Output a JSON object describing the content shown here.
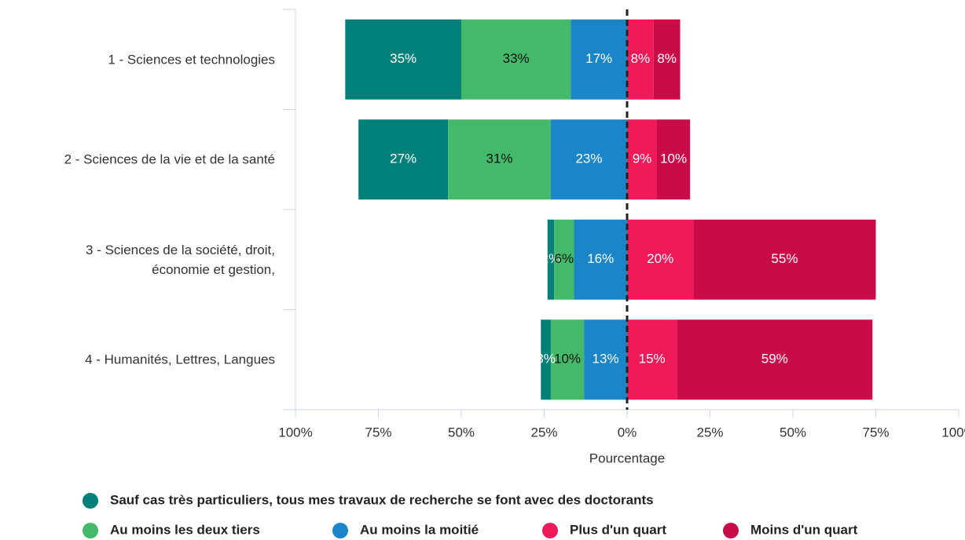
{
  "chart_data": {
    "type": "diverging_bar",
    "categories": [
      "1 - Sciences et technologies",
      "2 - Sciences de la vie et de la santé",
      "3 - Sciences de la société, droit,\néconomie et gestion,",
      "4 - Humanités, Lettres, Langues"
    ],
    "series": [
      {
        "name": "Sauf cas très particuliers, tous mes travaux de recherche se font avec des doctorants",
        "color": "#008078",
        "label_color": "#ffffff",
        "side": "left",
        "values": [
          35,
          27,
          2,
          3
        ],
        "value_labels": [
          "35%",
          "27%",
          "2%",
          "3%"
        ]
      },
      {
        "name": "Au moins les deux tiers",
        "color": "#45b96a",
        "label_color": "#111111",
        "side": "left",
        "values": [
          33,
          31,
          6,
          10
        ],
        "value_labels": [
          "33%",
          "31%",
          "6%",
          "10%"
        ]
      },
      {
        "name": "Au moins la moitié",
        "color": "#1a86c8",
        "label_color": "#ffffff",
        "side": "left",
        "values": [
          17,
          23,
          16,
          13
        ],
        "value_labels": [
          "17%",
          "23%",
          "16%",
          "13%"
        ]
      },
      {
        "name": "Plus d'un quart",
        "color": "#f0195a",
        "label_color": "#ffffff",
        "side": "right",
        "values": [
          8,
          9,
          20,
          15
        ],
        "value_labels": [
          "8%",
          "9%",
          "20%",
          "15%"
        ]
      },
      {
        "name": "Moins d'un quart",
        "color": "#c80c48",
        "label_color": "#ffffff",
        "side": "right",
        "values": [
          8,
          10,
          55,
          59
        ],
        "value_labels": [
          "8%",
          "10%",
          "55%",
          "59%"
        ]
      }
    ],
    "xlabel": "Pourcentage",
    "xlim": [
      -100,
      100
    ],
    "xticks": [
      {
        "value": -100,
        "label": "100%"
      },
      {
        "value": -75,
        "label": "75%"
      },
      {
        "value": -50,
        "label": "50%"
      },
      {
        "value": -25,
        "label": "25%"
      },
      {
        "value": 0,
        "label": "0%"
      },
      {
        "value": 25,
        "label": "25%"
      },
      {
        "value": 50,
        "label": "50%"
      },
      {
        "value": 75,
        "label": "75%"
      },
      {
        "value": 100,
        "label": "100%"
      }
    ],
    "legend": "bottom"
  }
}
